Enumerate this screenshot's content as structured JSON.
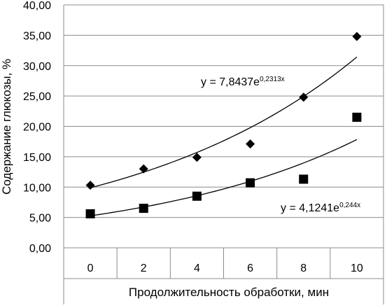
{
  "chart_data": {
    "type": "scatter",
    "title": "",
    "xlabel": "Продолжительность обработки, мин",
    "ylabel": "Содержание глюкозы, %",
    "categories": [
      "0",
      "2",
      "4",
      "6",
      "8",
      "10"
    ],
    "x": [
      0,
      2,
      4,
      6,
      8,
      10
    ],
    "ylim": [
      0,
      40
    ],
    "yticks": [
      "0,00",
      "5,00",
      "10,00",
      "15,00",
      "20,00",
      "25,00",
      "30,00",
      "35,00",
      "40,00"
    ],
    "grid": "horizontal",
    "legend": "none",
    "series": [
      {
        "marker": "diamond",
        "values": [
          10.3,
          13.0,
          14.9,
          17.1,
          24.8,
          34.8
        ],
        "trend": {
          "a": 7.8437,
          "b": 0.2313,
          "label": "y = 7,8437e",
          "exp": "0,2313x"
        }
      },
      {
        "marker": "square",
        "values": [
          5.6,
          6.5,
          8.5,
          10.7,
          11.3,
          21.5
        ],
        "trend": {
          "a": 4.1241,
          "b": 0.244,
          "label": "y = 4,1241e",
          "exp": "0,244x"
        }
      }
    ]
  }
}
